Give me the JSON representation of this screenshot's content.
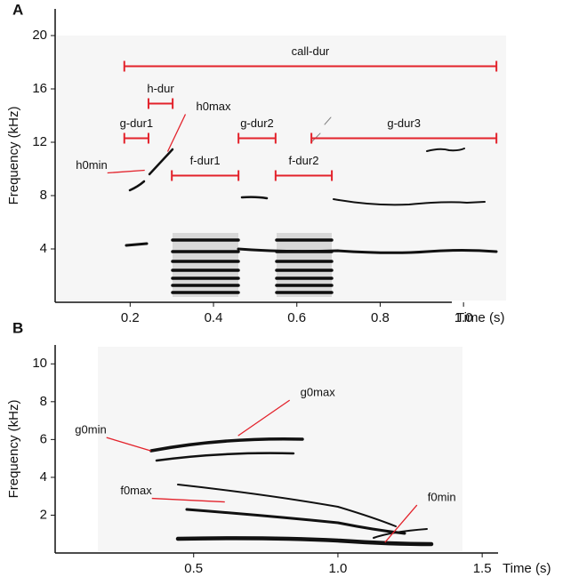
{
  "chart_data": [
    {
      "type": "spectrogram",
      "panel": "A",
      "x_label": "Time (s)",
      "y_label": "Frequency (kHz)",
      "xlim": [
        0.02,
        1.1
      ],
      "ylim": [
        0,
        22
      ],
      "xticks": [
        0.2,
        0.4,
        0.6,
        0.8,
        {
          "value": 1,
          "label": "1.0"
        }
      ],
      "yticks": [
        4,
        8,
        12,
        16,
        20
      ],
      "annotation_color": "#e3222b",
      "intervals": [
        {
          "label": "call-dur",
          "x": [
            0.186,
            1.079
          ],
          "y": 17.7
        },
        {
          "label": "h-dur",
          "x": [
            0.244,
            0.302
          ],
          "y": 14.9
        },
        {
          "label": "g-dur1",
          "x": [
            0.186,
            0.244
          ],
          "y": 12.3
        },
        {
          "label": "g-dur2",
          "x": [
            0.46,
            0.549
          ],
          "y": 12.3
        },
        {
          "label": "g-dur3",
          "x": [
            0.635,
            1.079
          ],
          "y": 12.3
        },
        {
          "label": "f-dur1",
          "x": [
            0.3,
            0.46
          ],
          "y": 9.5
        },
        {
          "label": "f-dur2",
          "x": [
            0.549,
            0.684
          ],
          "y": 9.5
        }
      ],
      "points": [
        {
          "label": "h0min",
          "x": 0.235,
          "y": 9.9
        },
        {
          "label": "h0max",
          "x": 0.29,
          "y": 11.3
        }
      ]
    },
    {
      "type": "spectrogram",
      "panel": "B",
      "x_label": "Time (s)",
      "y_label": "Frequency (kHz)",
      "xlim": [
        0.02,
        1.74
      ],
      "ylim": [
        0,
        11
      ],
      "xticks": [
        0.5,
        {
          "value": 1,
          "label": "1.0"
        },
        1.5
      ],
      "yticks": [
        2,
        4,
        6,
        8,
        10
      ],
      "annotation_color": "#e3222b",
      "intervals": [],
      "points": [
        {
          "label": "g0max",
          "x": 0.654,
          "y": 6.2
        },
        {
          "label": "g0min",
          "x": 0.352,
          "y": 5.4
        },
        {
          "label": "f0max",
          "x": 0.608,
          "y": 2.7
        },
        {
          "label": "f0min",
          "x": 1.163,
          "y": 0.56
        }
      ]
    }
  ]
}
